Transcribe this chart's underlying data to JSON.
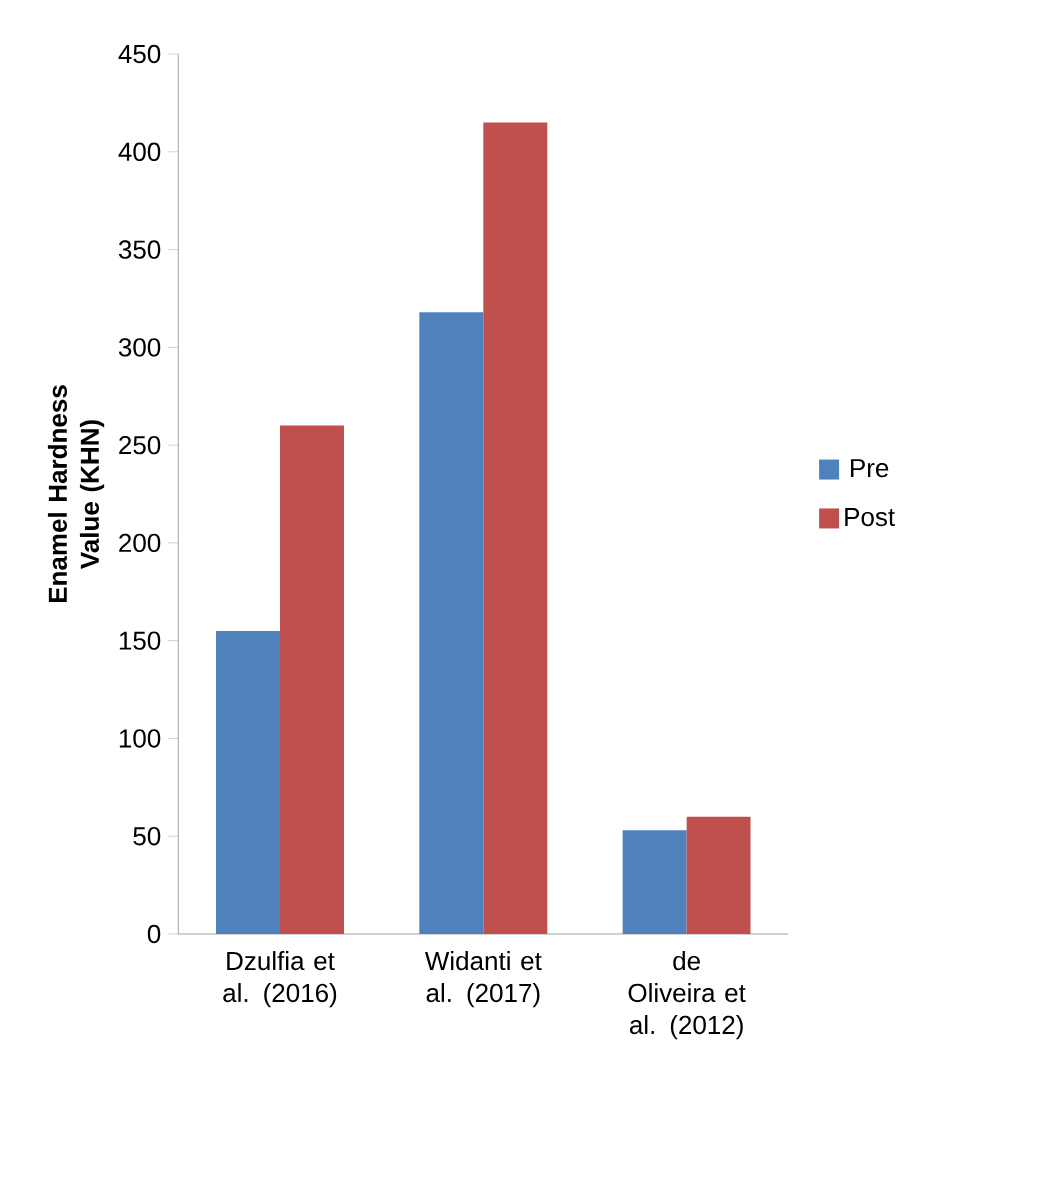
{
  "chart_data": {
    "type": "bar",
    "ylabel": "Enamel Hardness Value (KHN)",
    "categories": [
      "Dzulfia et al. (2016)",
      "Widanti et al. (2017)",
      "de Oliveira et al. (2012)"
    ],
    "series": [
      {
        "name": "Pre",
        "color": "#4f81bd",
        "values": [
          155,
          318,
          53
        ]
      },
      {
        "name": "Post",
        "color": "#c0504d",
        "values": [
          260,
          415,
          60
        ]
      }
    ],
    "ylim": [
      0,
      450
    ],
    "yticks": [
      0,
      50,
      100,
      150,
      200,
      250,
      300,
      350,
      400,
      450
    ],
    "legend": "right"
  }
}
